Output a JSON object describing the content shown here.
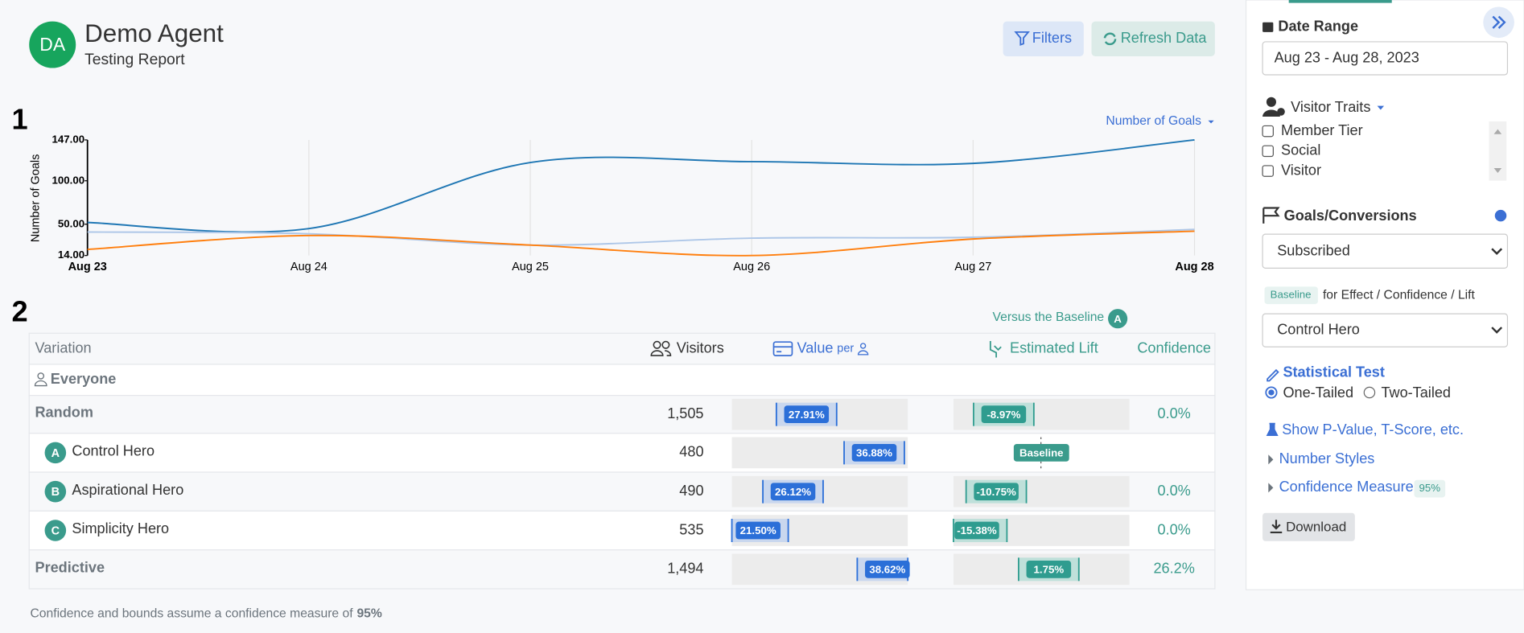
{
  "header": {
    "avatar": "DA",
    "title": "Demo Agent",
    "subtitle": "Testing Report",
    "buttons": [
      "Filters",
      "Refresh Data"
    ]
  },
  "section_markers": [
    "1",
    "2"
  ],
  "chart_data": {
    "type": "line",
    "y_label": "Number of Goals",
    "metric_selector": "Number of Goals",
    "categories": [
      "Aug 23",
      "Aug 24",
      "Aug 25",
      "Aug 26",
      "Aug 27",
      "Aug 28"
    ],
    "series": [
      {
        "color": "#1f77b4",
        "values": [
          52,
          45,
          121,
          122,
          120,
          147
        ]
      },
      {
        "color": "#aec7e8",
        "values": [
          41,
          39,
          26,
          34,
          35,
          44
        ]
      },
      {
        "color": "#ff7f0e",
        "values": [
          21,
          37,
          26,
          14,
          33,
          42
        ]
      }
    ],
    "ylim": [
      14,
      147
    ],
    "yticks": [
      {
        "value": 14,
        "label": "14.00"
      },
      {
        "value": 50,
        "label": "50.00"
      },
      {
        "value": 100,
        "label": "100.00"
      },
      {
        "value": 147,
        "label": "147.00"
      }
    ],
    "grid": true
  },
  "table": {
    "baseline_note": "Versus the Baseline",
    "baseline_badge": "A",
    "columns": [
      "Variation",
      "Visitors",
      "Value",
      "per",
      "Estimated Lift",
      "Confidence"
    ],
    "group": "Everyone",
    "rows": [
      {
        "name": "Random",
        "visitors": "1,505",
        "value": "27.91%",
        "lift": "-8.97%",
        "confidence": "0.0%"
      },
      {
        "badge": "A",
        "name": "Control Hero",
        "visitors": "480",
        "value": "36.88%",
        "lift": "Baseline"
      },
      {
        "badge": "B",
        "name": "Aspirational Hero",
        "visitors": "490",
        "value": "26.12%",
        "lift": "-10.75%",
        "confidence": "0.0%"
      },
      {
        "badge": "C",
        "name": "Simplicity Hero",
        "visitors": "535",
        "value": "21.50%",
        "lift": "-15.38%",
        "confidence": "0.0%"
      },
      {
        "name": "Predictive",
        "visitors": "1,494",
        "value": "38.62%",
        "lift": "1.75%",
        "confidence": "26.2%"
      }
    ]
  },
  "footer": {
    "text": "Confidence and bounds assume a confidence measure of",
    "measure": "95%"
  },
  "sidebar": {
    "date_range": {
      "label": "Date Range",
      "value": "Aug 23 - Aug 28, 2023"
    },
    "visitor_traits": {
      "label": "Visitor Traits",
      "options": [
        "Member Tier",
        "Social",
        "Visitor"
      ]
    },
    "goals": {
      "label": "Goals/Conversions",
      "value": "Subscribed"
    },
    "baseline": {
      "tag": "Baseline",
      "text": "for Effect / Confidence / Lift",
      "value": "Control Hero"
    },
    "statistical_test": {
      "label": "Statistical Test",
      "options": [
        "One-Tailed",
        "Two-Tailed"
      ]
    },
    "links": [
      "Show P-Value, T-Score, etc.",
      "Number Styles",
      "Confidence Measure"
    ],
    "confidence_tag": "95%",
    "download": "Download"
  }
}
